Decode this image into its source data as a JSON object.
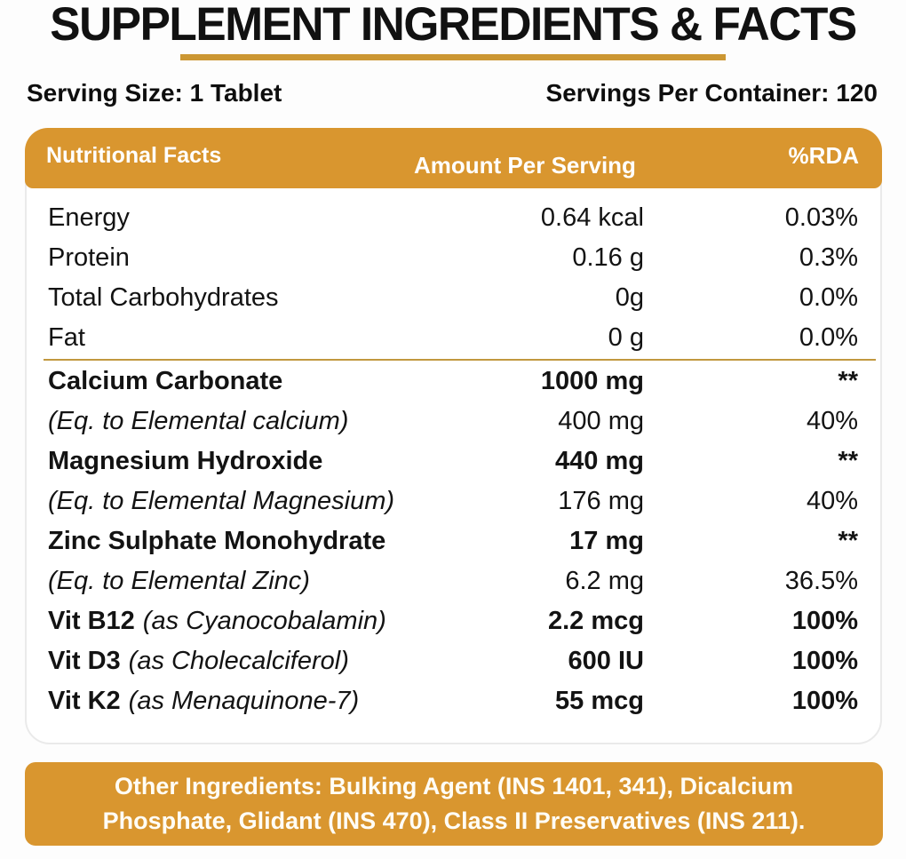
{
  "title": "SUPPLEMENT INGREDIENTS & FACTS",
  "serving": {
    "size_label": "Serving Size: 1 Tablet",
    "per_container_label": "Servings Per Container: 120"
  },
  "table": {
    "header": {
      "col1": "Nutritional Facts",
      "col2": "Amount Per Serving",
      "col3": "%RDA"
    },
    "rows": [
      {
        "name": "Energy",
        "italic": "",
        "amount": "0.64 kcal",
        "rda": "0.03%"
      },
      {
        "name": "Protein",
        "italic": "",
        "amount": "0.16 g",
        "rda": "0.3%"
      },
      {
        "name": "Total Carbohydrates",
        "italic": "",
        "amount": "0g",
        "rda": "0.0%"
      },
      {
        "name": "Fat",
        "italic": "",
        "amount": "0 g",
        "rda": "0.0%"
      },
      {
        "name": "Calcium Carbonate",
        "italic": "",
        "amount": "1000 mg",
        "rda": "**"
      },
      {
        "name": "",
        "italic": "(Eq. to Elemental calcium)",
        "amount": "400 mg",
        "rda": "40%"
      },
      {
        "name": "Magnesium Hydroxide",
        "italic": "",
        "amount": "440 mg",
        "rda": "**"
      },
      {
        "name": "",
        "italic": "(Eq. to Elemental Magnesium)",
        "amount": "176 mg",
        "rda": "40%"
      },
      {
        "name": "Zinc Sulphate Monohydrate",
        "italic": "",
        "amount": "17 mg",
        "rda": "**"
      },
      {
        "name": "",
        "italic": "(Eq. to Elemental Zinc)",
        "amount": "6.2 mg",
        "rda": "36.5%"
      },
      {
        "name": "Vit B12",
        "italic": "(as Cyanocobalamin)",
        "amount": "2.2 mcg",
        "rda": "100%"
      },
      {
        "name": "Vit D3",
        "italic": "(as Cholecalciferol)",
        "amount": "600 IU",
        "rda": "100%"
      },
      {
        "name": "Vit K2",
        "italic": "(as Menaquinone-7)",
        "amount": "55 mcg",
        "rda": "100%"
      }
    ]
  },
  "other_ingredients": "Other Ingredients: Bulking Agent (INS 1401, 341), Dicalcium Phosphate, Glidant (INS 470), Class II Preservatives (INS 211).",
  "colors": {
    "accent": "#D9962F",
    "title_underline": "#CC9733",
    "separator_line": "#C1983F",
    "card_border": "#EAEAEA",
    "body_text": "#131313",
    "header_text": "#FFFFFF"
  }
}
